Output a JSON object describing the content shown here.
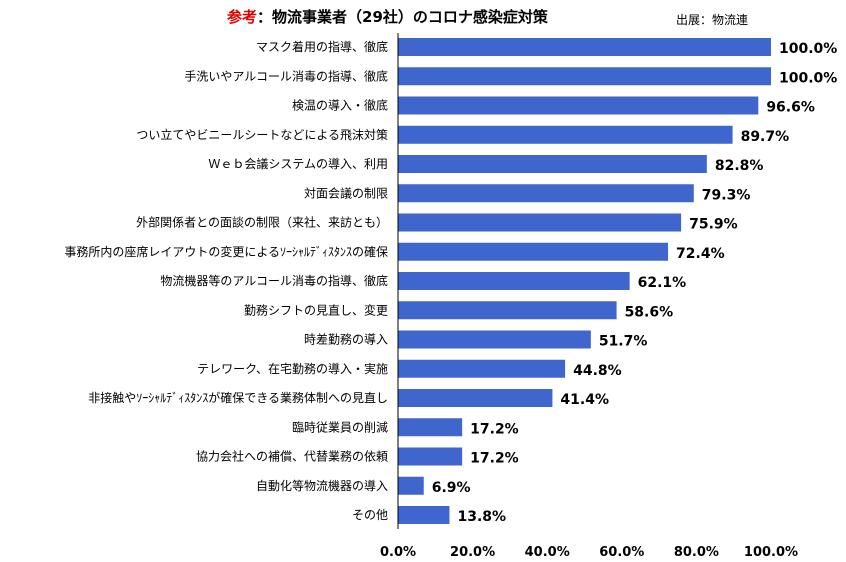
{
  "header": {
    "title_prefix": "参考",
    "title_rest": "：物流事業者（29社）のコロナ感染症対策",
    "source": "出展：物流連"
  },
  "colors": {
    "bar": "#3f66cc",
    "title_accent": "#e00000"
  },
  "chart_data": {
    "type": "bar",
    "orientation": "horizontal",
    "categories": [
      "マスク着用の指導、徹底",
      "手洗いやアルコール消毒の指導、徹底",
      "検温の導入・徹底",
      "つい立てやビニールシートなどによる飛沫対策",
      "Ｗｅｂ会議システムの導入、利用",
      "対面会議の制限",
      "外部関係者との面談の制限（来社、来訪とも）",
      "事務所内の座席レイアウトの変更によるｿｰｼｬﾙﾃﾞｨｽﾀﾝｽの確保",
      "物流機器等のアルコール消毒の指導、徹底",
      "勤務シフトの見直し、変更",
      "時差勤務の導入",
      "テレワーク、在宅勤務の導入・実施",
      "非接触やｿｰｼｬﾙﾃﾞｨｽﾀﾝｽが確保できる業務体制への見直し",
      "臨時従業員の削減",
      "協力会社への補償、代替業務の依頼",
      "自動化等物流機器の導入",
      "その他"
    ],
    "values": [
      100.0,
      100.0,
      96.6,
      89.7,
      82.8,
      79.3,
      75.9,
      72.4,
      62.1,
      58.6,
      51.7,
      44.8,
      41.4,
      17.2,
      17.2,
      6.9,
      13.8
    ],
    "value_labels": [
      "100.0%",
      "100.0%",
      "96.6%",
      "89.7%",
      "82.8%",
      "79.3%",
      "75.9%",
      "72.4%",
      "62.1%",
      "58.6%",
      "51.7%",
      "44.8%",
      "41.4%",
      "17.2%",
      "17.2%",
      "6.9%",
      "13.8%"
    ],
    "xlim": [
      0,
      100
    ],
    "xticks": [
      "0.0%",
      "20.0%",
      "40.0%",
      "60.0%",
      "80.0%",
      "100.0%"
    ],
    "grid": false,
    "legend": "none"
  }
}
